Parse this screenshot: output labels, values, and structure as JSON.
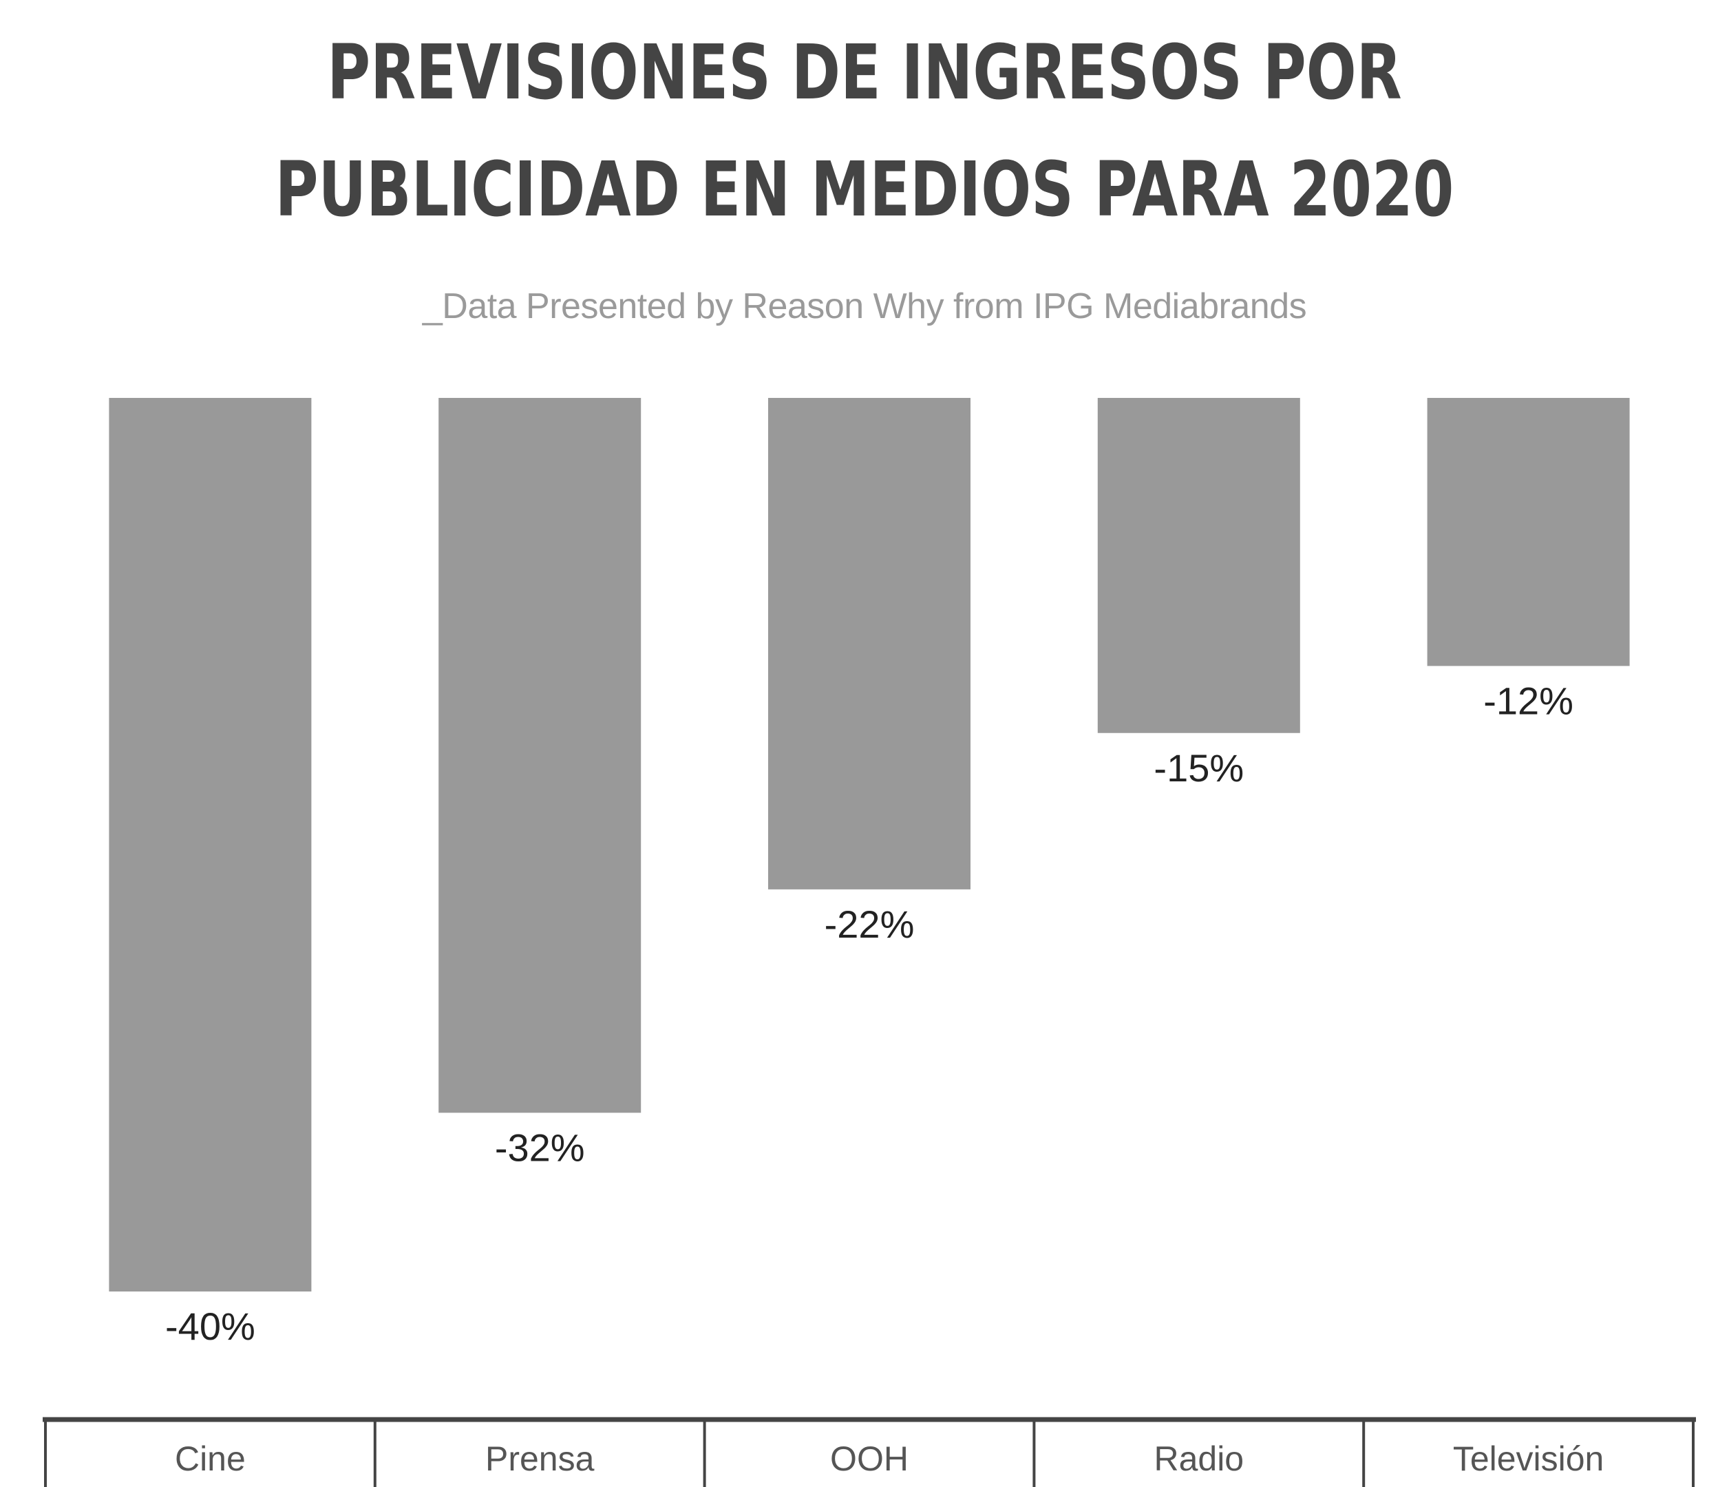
{
  "chart_data": {
    "type": "bar",
    "title": "PREVISIONES DE INGRESOS POR PUBLICIDAD EN MEDIOS PARA 2020",
    "subtitle": "_Data Presented by Reason Why from IPG Mediabrands",
    "categories": [
      "Cine",
      "Prensa",
      "OOH",
      "Radio",
      "Televisión"
    ],
    "values": [
      -40,
      -32,
      -22,
      -15,
      -12
    ],
    "value_labels": [
      "-40%",
      "-32%",
      "-22%",
      "-15%",
      "-12%"
    ],
    "xlabel": "",
    "ylabel": "",
    "ylim": [
      -40,
      0
    ],
    "grid": false,
    "legend": "none",
    "bar_color": "#999999",
    "axis_color": "#444444"
  }
}
